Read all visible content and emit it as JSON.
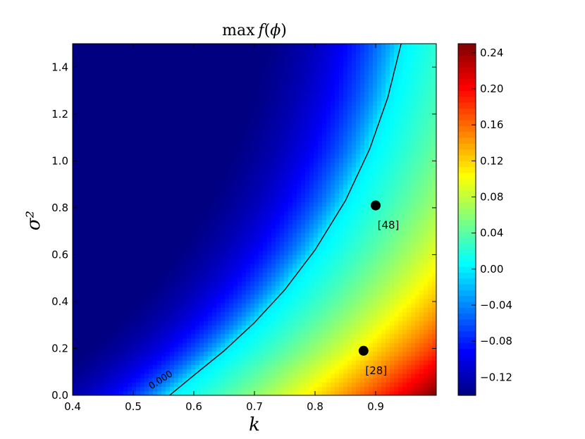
{
  "chart_data": {
    "type": "heatmap",
    "title": "max f(ϕ)",
    "xlabel": "k",
    "ylabel": "σ²",
    "xlim": [
      0.4,
      1.0
    ],
    "ylim": [
      0.0,
      1.5
    ],
    "x_ticks": [
      "0.4",
      "0.5",
      "0.6",
      "0.7",
      "0.8",
      "0.9"
    ],
    "y_ticks": [
      "0.0",
      "0.2",
      "0.4",
      "0.6",
      "0.8",
      "1.0",
      "1.2",
      "1.4"
    ],
    "colormap": "jet",
    "colorbar_range": [
      -0.14,
      0.25
    ],
    "colorbar_ticks": [
      "−0.12",
      "−0.08",
      "−0.04",
      "0.00",
      "0.04",
      "0.08",
      "0.12",
      "0.16",
      "0.20",
      "0.24"
    ],
    "contour": {
      "level_label": "0.000",
      "points": [
        {
          "x": 0.56,
          "y": 0.0
        },
        {
          "x": 0.6,
          "y": 0.085
        },
        {
          "x": 0.65,
          "y": 0.19
        },
        {
          "x": 0.7,
          "y": 0.31
        },
        {
          "x": 0.75,
          "y": 0.45
        },
        {
          "x": 0.8,
          "y": 0.62
        },
        {
          "x": 0.85,
          "y": 0.83
        },
        {
          "x": 0.89,
          "y": 1.05
        },
        {
          "x": 0.92,
          "y": 1.27
        },
        {
          "x": 0.942,
          "y": 1.5
        }
      ]
    },
    "markers": [
      {
        "label": "[48]",
        "x": 0.9,
        "y": 0.81
      },
      {
        "label": "[28]",
        "x": 0.88,
        "y": 0.19
      }
    ]
  }
}
